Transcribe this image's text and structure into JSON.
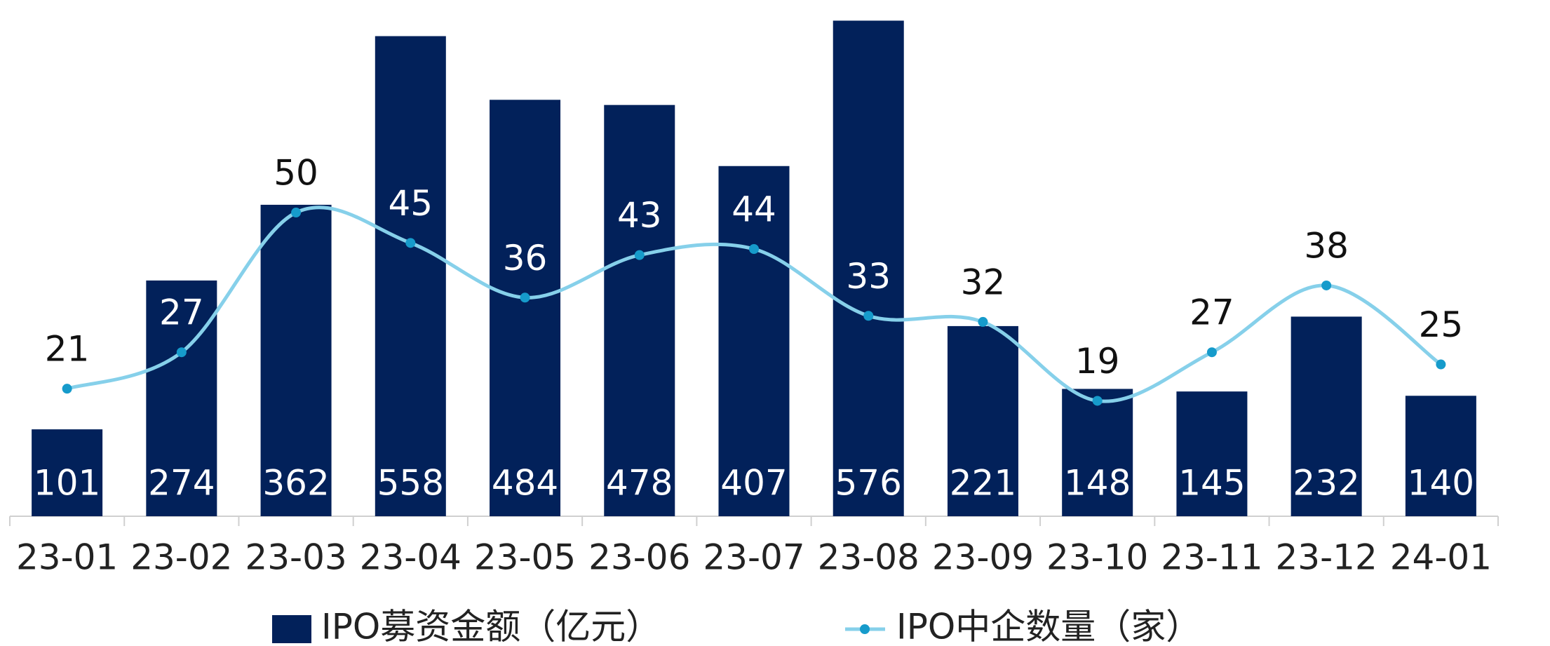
{
  "chart_data": {
    "type": "bar-line",
    "categories": [
      "23-01",
      "23-02",
      "23-03",
      "23-04",
      "23-05",
      "23-06",
      "23-07",
      "23-08",
      "23-09",
      "23-10",
      "23-11",
      "23-12",
      "24-01"
    ],
    "series": [
      {
        "name": "IPO募资金额（亿元）",
        "type": "bar",
        "color": "#02215a",
        "values": [
          101,
          274,
          362,
          558,
          484,
          478,
          407,
          576,
          221,
          148,
          145,
          232,
          140
        ]
      },
      {
        "name": "IPO中企数量（家）",
        "type": "line",
        "axis": "y2",
        "color": "#86d0ea",
        "marker_color": "#169bcb",
        "values": [
          21,
          27,
          50,
          45,
          36,
          43,
          44,
          33,
          32,
          19,
          27,
          38,
          25
        ]
      }
    ],
    "ylim": [
      0,
      600
    ],
    "y2lim": [
      0,
      85
    ],
    "legend": "bottom"
  }
}
